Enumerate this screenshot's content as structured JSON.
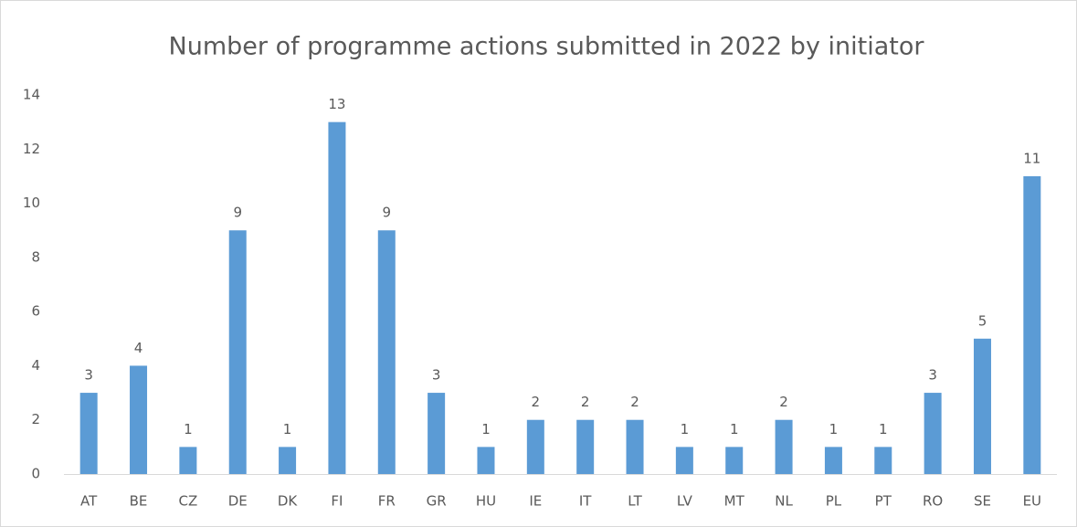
{
  "chart_data": {
    "type": "bar",
    "title": "Number of programme actions submitted in  2022 by initiator",
    "categories": [
      "AT",
      "BE",
      "CZ",
      "DE",
      "DK",
      "FI",
      "FR",
      "GR",
      "HU",
      "IE",
      "IT",
      "LT",
      "LV",
      "MT",
      "NL",
      "PL",
      "PT",
      "RO",
      "SE",
      "EU"
    ],
    "values": [
      3,
      4,
      1,
      9,
      1,
      13,
      9,
      3,
      1,
      2,
      2,
      2,
      1,
      1,
      2,
      1,
      1,
      3,
      5,
      11
    ],
    "color": "#5b9bd5",
    "ylim": [
      0,
      14
    ],
    "yticks": [
      0,
      2,
      4,
      6,
      8,
      10,
      12,
      14
    ],
    "grid": false
  }
}
